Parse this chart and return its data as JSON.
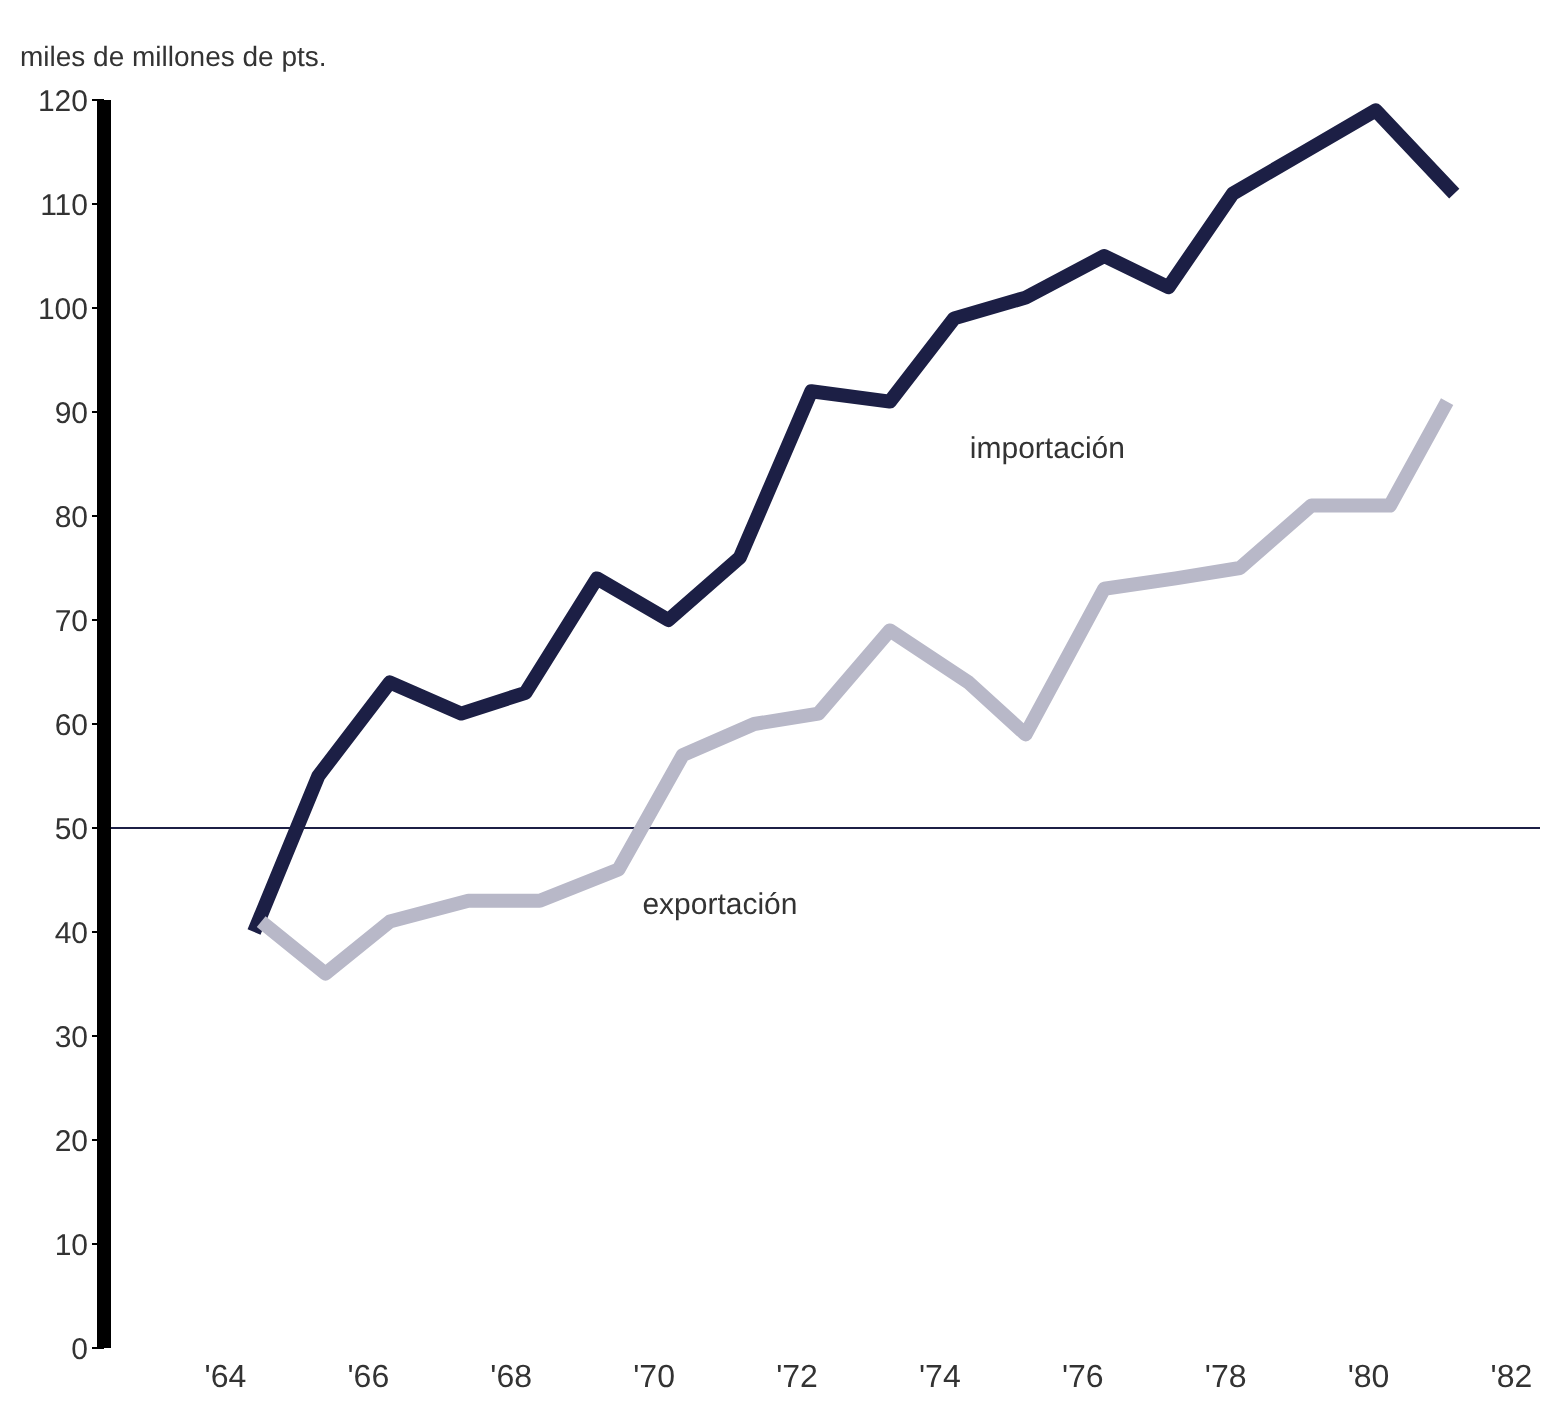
{
  "chart_data": {
    "type": "line",
    "ylabel": "miles de millones de pts.",
    "series": [
      {
        "name": "importación",
        "color": "#1c1f45",
        "x": [
          64.4,
          65.3,
          66.3,
          67.3,
          68.2,
          69.2,
          70.2,
          71.2,
          72.2,
          73.3,
          74.2,
          75.2,
          76.3,
          77.2,
          78.1,
          79.1,
          80.1,
          81.2
        ],
        "values": [
          40,
          55,
          64,
          61,
          63,
          74,
          70,
          76,
          92,
          91,
          99,
          101,
          105,
          102,
          111,
          115,
          119,
          111
        ]
      },
      {
        "name": "exportación",
        "color": "#b8b8c8",
        "x": [
          64.5,
          65.4,
          66.3,
          67.4,
          68.4,
          69.5,
          70.4,
          71.4,
          72.3,
          73.3,
          74.4,
          75.2,
          76.3,
          77.3,
          78.2,
          79.2,
          80.3,
          81.1
        ],
        "values": [
          41,
          36,
          41,
          43,
          43,
          46,
          57,
          60,
          61,
          69,
          64,
          59,
          73,
          74,
          75,
          81,
          81,
          91
        ]
      }
    ],
    "xlim": [
      62.3,
      82.4
    ],
    "xticks": [
      {
        "value": 64,
        "label": "'64"
      },
      {
        "value": 66,
        "label": "'66"
      },
      {
        "value": 68,
        "label": "'68"
      },
      {
        "value": 70,
        "label": "'70"
      },
      {
        "value": 72,
        "label": "'72"
      },
      {
        "value": 74,
        "label": "'74"
      },
      {
        "value": 76,
        "label": "'76"
      },
      {
        "value": 78,
        "label": "'78"
      },
      {
        "value": 80,
        "label": "'80"
      },
      {
        "value": 82,
        "label": "'82"
      }
    ],
    "ylim": [
      0,
      120
    ],
    "yticks": [
      0,
      10,
      20,
      30,
      40,
      50,
      60,
      70,
      80,
      90,
      100,
      110,
      120
    ],
    "ref_lines": [
      {
        "axis": "y",
        "value": 50,
        "color": "#1c1f45"
      }
    ],
    "grid": false,
    "legend": false,
    "marker": "none",
    "line_style": "solid"
  }
}
